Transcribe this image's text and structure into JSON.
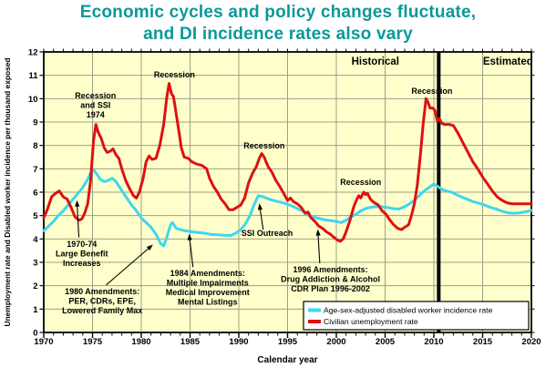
{
  "title": {
    "line1": "Economic cycles and policy changes fluctuate,",
    "line2": "and DI incidence rates also vary"
  },
  "colors": {
    "title": "#0b9898",
    "plot_background": "#FFFFCC",
    "grid": "#9f9f86",
    "frame": "#000000",
    "divider": "#000000",
    "incidence_line": "#3ED7EF",
    "unemployment_line": "#DD1111"
  },
  "chart_data": {
    "type": "line",
    "title": "Economic cycles and policy changes fluctuate, and DI incidence rates also vary",
    "xlabel": "Calendar year",
    "ylabel": "Unemployment rate and Disabled worker incidence per thousand exposed",
    "xlim": [
      1970,
      2020
    ],
    "ylim": [
      0,
      12
    ],
    "x_ticks": [
      1970,
      1975,
      1980,
      1985,
      1990,
      1995,
      2000,
      2005,
      2010,
      2015,
      2020
    ],
    "x_minor_step": 1,
    "y_ticks": [
      0,
      1,
      2,
      3,
      4,
      5,
      6,
      7,
      8,
      9,
      10,
      11,
      12
    ],
    "grid": true,
    "legend_position": "bottom-right",
    "divider_year": 2010.5,
    "legend": [
      {
        "label": "Age-sex-adjusted disabled worker incidence rate",
        "color": "#3ED7EF"
      },
      {
        "label": "Civilian unemployment rate",
        "color": "#DD1111"
      }
    ],
    "series": [
      {
        "name": "Age-sex-adjusted disabled worker incidence rate",
        "color": "#3ED7EF",
        "width": 3,
        "points": [
          [
            1970.0,
            4.35
          ],
          [
            1970.5,
            4.55
          ],
          [
            1971.0,
            4.75
          ],
          [
            1971.5,
            5.0
          ],
          [
            1972.0,
            5.2
          ],
          [
            1972.5,
            5.45
          ],
          [
            1973.0,
            5.7
          ],
          [
            1973.5,
            5.95
          ],
          [
            1974.0,
            6.2
          ],
          [
            1974.5,
            6.55
          ],
          [
            1975.0,
            7.0
          ],
          [
            1975.4,
            6.8
          ],
          [
            1975.8,
            6.55
          ],
          [
            1976.2,
            6.45
          ],
          [
            1976.6,
            6.5
          ],
          [
            1977.0,
            6.6
          ],
          [
            1977.4,
            6.45
          ],
          [
            1977.8,
            6.2
          ],
          [
            1978.2,
            5.95
          ],
          [
            1978.6,
            5.7
          ],
          [
            1979.0,
            5.45
          ],
          [
            1979.5,
            5.2
          ],
          [
            1980.0,
            4.9
          ],
          [
            1980.5,
            4.7
          ],
          [
            1981.0,
            4.5
          ],
          [
            1981.5,
            4.2
          ],
          [
            1982.0,
            3.8
          ],
          [
            1982.3,
            3.7
          ],
          [
            1982.6,
            4.05
          ],
          [
            1983.0,
            4.6
          ],
          [
            1983.2,
            4.7
          ],
          [
            1983.6,
            4.45
          ],
          [
            1984.0,
            4.4
          ],
          [
            1984.5,
            4.35
          ],
          [
            1985.0,
            4.32
          ],
          [
            1985.7,
            4.28
          ],
          [
            1986.4,
            4.25
          ],
          [
            1987.1,
            4.2
          ],
          [
            1987.8,
            4.18
          ],
          [
            1988.5,
            4.16
          ],
          [
            1989.2,
            4.15
          ],
          [
            1989.7,
            4.25
          ],
          [
            1990.2,
            4.4
          ],
          [
            1990.7,
            4.65
          ],
          [
            1991.2,
            5.05
          ],
          [
            1991.6,
            5.5
          ],
          [
            1992.0,
            5.85
          ],
          [
            1992.5,
            5.8
          ],
          [
            1993.0,
            5.72
          ],
          [
            1993.5,
            5.65
          ],
          [
            1994.0,
            5.6
          ],
          [
            1994.5,
            5.55
          ],
          [
            1995.0,
            5.48
          ],
          [
            1995.5,
            5.4
          ],
          [
            1996.0,
            5.3
          ],
          [
            1996.5,
            5.2
          ],
          [
            1997.0,
            5.05
          ],
          [
            1997.5,
            4.95
          ],
          [
            1998.0,
            4.9
          ],
          [
            1998.5,
            4.85
          ],
          [
            1999.0,
            4.8
          ],
          [
            1999.5,
            4.78
          ],
          [
            2000.0,
            4.75
          ],
          [
            2000.5,
            4.7
          ],
          [
            2001.0,
            4.8
          ],
          [
            2001.5,
            4.95
          ],
          [
            2002.0,
            5.05
          ],
          [
            2002.5,
            5.2
          ],
          [
            2003.0,
            5.3
          ],
          [
            2003.5,
            5.35
          ],
          [
            2004.0,
            5.38
          ],
          [
            2004.6,
            5.38
          ],
          [
            2005.2,
            5.35
          ],
          [
            2005.8,
            5.3
          ],
          [
            2006.4,
            5.28
          ],
          [
            2007.0,
            5.38
          ],
          [
            2007.5,
            5.5
          ],
          [
            2008.0,
            5.65
          ],
          [
            2008.5,
            5.85
          ],
          [
            2009.0,
            6.05
          ],
          [
            2009.5,
            6.2
          ],
          [
            2010.0,
            6.35
          ],
          [
            2010.4,
            6.25
          ],
          [
            2010.8,
            6.12
          ],
          [
            2011.3,
            6.05
          ],
          [
            2011.8,
            6.0
          ],
          [
            2012.3,
            5.9
          ],
          [
            2012.8,
            5.8
          ],
          [
            2013.4,
            5.7
          ],
          [
            2014.0,
            5.6
          ],
          [
            2014.6,
            5.53
          ],
          [
            2015.2,
            5.45
          ],
          [
            2015.8,
            5.35
          ],
          [
            2016.4,
            5.28
          ],
          [
            2017.0,
            5.18
          ],
          [
            2017.6,
            5.12
          ],
          [
            2018.2,
            5.1
          ],
          [
            2018.8,
            5.12
          ],
          [
            2019.4,
            5.16
          ],
          [
            2020.0,
            5.22
          ]
        ]
      },
      {
        "name": "Civilian unemployment rate",
        "color": "#DD1111",
        "width": 3,
        "points": [
          [
            1970.0,
            4.9
          ],
          [
            1970.4,
            5.3
          ],
          [
            1970.8,
            5.8
          ],
          [
            1971.2,
            5.95
          ],
          [
            1971.6,
            6.05
          ],
          [
            1972.0,
            5.8
          ],
          [
            1972.4,
            5.7
          ],
          [
            1972.8,
            5.35
          ],
          [
            1973.2,
            4.95
          ],
          [
            1973.6,
            4.8
          ],
          [
            1973.9,
            4.85
          ],
          [
            1974.2,
            5.1
          ],
          [
            1974.5,
            5.5
          ],
          [
            1974.8,
            6.5
          ],
          [
            1975.1,
            8.2
          ],
          [
            1975.35,
            8.9
          ],
          [
            1975.6,
            8.55
          ],
          [
            1975.9,
            8.3
          ],
          [
            1976.2,
            7.9
          ],
          [
            1976.5,
            7.7
          ],
          [
            1976.8,
            7.75
          ],
          [
            1977.1,
            7.85
          ],
          [
            1977.4,
            7.6
          ],
          [
            1977.7,
            7.45
          ],
          [
            1978.0,
            7.0
          ],
          [
            1978.4,
            6.5
          ],
          [
            1978.8,
            6.15
          ],
          [
            1979.2,
            5.85
          ],
          [
            1979.5,
            5.75
          ],
          [
            1979.8,
            6.0
          ],
          [
            1980.2,
            6.6
          ],
          [
            1980.5,
            7.3
          ],
          [
            1980.8,
            7.55
          ],
          [
            1981.1,
            7.4
          ],
          [
            1981.5,
            7.45
          ],
          [
            1981.9,
            8.0
          ],
          [
            1982.3,
            8.9
          ],
          [
            1982.6,
            10.0
          ],
          [
            1982.85,
            10.65
          ],
          [
            1983.1,
            10.2
          ],
          [
            1983.3,
            10.1
          ],
          [
            1983.6,
            9.3
          ],
          [
            1983.9,
            8.5
          ],
          [
            1984.1,
            7.9
          ],
          [
            1984.4,
            7.5
          ],
          [
            1984.8,
            7.45
          ],
          [
            1985.2,
            7.3
          ],
          [
            1985.7,
            7.2
          ],
          [
            1986.2,
            7.15
          ],
          [
            1986.7,
            7.0
          ],
          [
            1987.0,
            6.6
          ],
          [
            1987.4,
            6.25
          ],
          [
            1987.8,
            6.0
          ],
          [
            1988.2,
            5.7
          ],
          [
            1988.6,
            5.5
          ],
          [
            1989.0,
            5.25
          ],
          [
            1989.4,
            5.25
          ],
          [
            1989.8,
            5.35
          ],
          [
            1990.2,
            5.45
          ],
          [
            1990.6,
            5.75
          ],
          [
            1991.0,
            6.4
          ],
          [
            1991.4,
            6.8
          ],
          [
            1991.8,
            7.1
          ],
          [
            1992.1,
            7.45
          ],
          [
            1992.35,
            7.65
          ],
          [
            1992.6,
            7.5
          ],
          [
            1993.0,
            7.1
          ],
          [
            1993.4,
            6.85
          ],
          [
            1993.8,
            6.5
          ],
          [
            1994.2,
            6.25
          ],
          [
            1994.6,
            5.95
          ],
          [
            1995.0,
            5.65
          ],
          [
            1995.3,
            5.75
          ],
          [
            1995.6,
            5.6
          ],
          [
            1996.0,
            5.5
          ],
          [
            1996.4,
            5.35
          ],
          [
            1996.8,
            5.1
          ],
          [
            1997.1,
            5.15
          ],
          [
            1997.4,
            4.9
          ],
          [
            1997.8,
            4.75
          ],
          [
            1998.2,
            4.55
          ],
          [
            1998.6,
            4.45
          ],
          [
            1999.0,
            4.3
          ],
          [
            1999.4,
            4.2
          ],
          [
            1999.8,
            4.05
          ],
          [
            2000.1,
            3.95
          ],
          [
            2000.4,
            3.9
          ],
          [
            2000.7,
            4.0
          ],
          [
            2001.0,
            4.3
          ],
          [
            2001.4,
            4.8
          ],
          [
            2001.8,
            5.4
          ],
          [
            2002.1,
            5.7
          ],
          [
            2002.3,
            5.85
          ],
          [
            2002.5,
            5.75
          ],
          [
            2002.8,
            6.0
          ],
          [
            2003.0,
            5.9
          ],
          [
            2003.2,
            5.95
          ],
          [
            2003.5,
            5.7
          ],
          [
            2003.9,
            5.55
          ],
          [
            2004.3,
            5.45
          ],
          [
            2004.7,
            5.2
          ],
          [
            2005.1,
            5.05
          ],
          [
            2005.5,
            4.8
          ],
          [
            2005.9,
            4.6
          ],
          [
            2006.3,
            4.45
          ],
          [
            2006.7,
            4.4
          ],
          [
            2007.0,
            4.5
          ],
          [
            2007.4,
            4.6
          ],
          [
            2007.7,
            5.0
          ],
          [
            2008.0,
            5.5
          ],
          [
            2008.3,
            6.3
          ],
          [
            2008.6,
            7.5
          ],
          [
            2008.9,
            8.9
          ],
          [
            2009.2,
            10.0
          ],
          [
            2009.4,
            9.85
          ],
          [
            2009.6,
            9.6
          ],
          [
            2009.9,
            9.6
          ],
          [
            2010.1,
            9.5
          ],
          [
            2010.35,
            9.05
          ],
          [
            2010.55,
            9.15
          ],
          [
            2010.8,
            8.95
          ],
          [
            2011.1,
            8.9
          ],
          [
            2011.6,
            8.9
          ],
          [
            2012.0,
            8.85
          ],
          [
            2012.5,
            8.5
          ],
          [
            2013.0,
            8.1
          ],
          [
            2013.5,
            7.7
          ],
          [
            2014.0,
            7.3
          ],
          [
            2014.5,
            7.0
          ],
          [
            2015.0,
            6.65
          ],
          [
            2015.5,
            6.35
          ],
          [
            2016.0,
            6.05
          ],
          [
            2016.5,
            5.8
          ],
          [
            2017.0,
            5.65
          ],
          [
            2017.5,
            5.55
          ],
          [
            2018.0,
            5.5
          ],
          [
            2018.7,
            5.5
          ],
          [
            2019.5,
            5.5
          ],
          [
            2020.0,
            5.5
          ]
        ]
      }
    ],
    "annotations": [
      {
        "name": "annotation-recession-1974",
        "lines": [
          "Recession",
          "and SSI",
          "1974"
        ],
        "x": 1975.3,
        "y": 10.32,
        "emph": false
      },
      {
        "name": "annotation-recession-1982",
        "lines": [
          "Recession"
        ],
        "x": 1983.4,
        "y": 11.22,
        "emph": false
      },
      {
        "name": "annotation-recession-1992",
        "lines": [
          "Recession"
        ],
        "x": 1992.6,
        "y": 8.18,
        "emph": false
      },
      {
        "name": "annotation-recession-2002",
        "lines": [
          "Recession"
        ],
        "x": 2002.5,
        "y": 6.62,
        "emph": false
      },
      {
        "name": "annotation-recession-2009",
        "lines": [
          "Recession"
        ],
        "x": 2009.8,
        "y": 10.52,
        "emph": false
      },
      {
        "name": "annotation-historical",
        "lines": [
          "Historical"
        ],
        "x": 2004.0,
        "y": 11.77,
        "emph": true
      },
      {
        "name": "annotation-estimated",
        "lines": [
          "Estimated"
        ],
        "x": 2017.6,
        "y": 11.77,
        "emph": true
      },
      {
        "name": "annotation-1970-benefit",
        "lines": [
          "1970-74",
          "Large Benefit",
          "Increases"
        ],
        "x": 1973.9,
        "y": 3.97,
        "emph": false
      },
      {
        "name": "annotation-1980-amendments",
        "lines": [
          "1980 Amendments:",
          "PER, CDRs, EPE,",
          "Lowered Family Max"
        ],
        "x": 1976.0,
        "y": 1.95,
        "emph": false
      },
      {
        "name": "annotation-1984-amendments",
        "lines": [
          "1984 Amendments:",
          "Multiple Impairments",
          "Medical Improvement",
          "Mental Listings"
        ],
        "x": 1986.8,
        "y": 2.73,
        "emph": false
      },
      {
        "name": "annotation-ssi-outreach",
        "lines": [
          "SSI Outreach"
        ],
        "x": 1992.9,
        "y": 4.44,
        "emph": false
      },
      {
        "name": "annotation-1996-amendments",
        "lines": [
          "1996 Amendments:",
          "Drug Addiction & Alcohol",
          "CDR Plan 1996-2002"
        ],
        "x": 1999.4,
        "y": 2.88,
        "emph": false
      }
    ],
    "arrows": [
      {
        "from": [
          1973.6,
          4.07
        ],
        "to": [
          1973.4,
          5.66
        ]
      },
      {
        "from": [
          1976.4,
          2.03
        ],
        "to": [
          1981.2,
          3.76
        ]
      },
      {
        "from": [
          1985.3,
          2.8
        ],
        "to": [
          1984.9,
          4.22
        ]
      },
      {
        "from": [
          1992.5,
          4.4
        ],
        "to": [
          1992.1,
          5.52
        ]
      },
      {
        "from": [
          1998.3,
          2.96
        ],
        "to": [
          1998.1,
          4.42
        ]
      }
    ]
  }
}
